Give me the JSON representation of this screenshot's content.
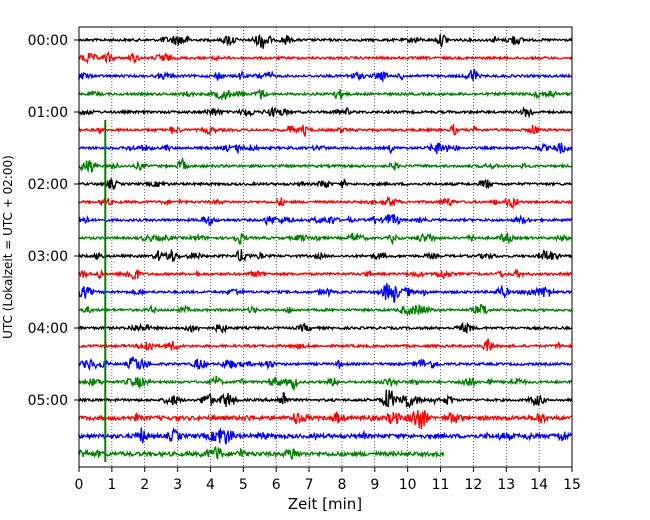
{
  "chart_data": {
    "type": "line",
    "subtype": "helicorder",
    "title": "",
    "xlabel": "Zeit  [min]",
    "ylabel": "UTC (Lokalzeit = UTC + 02:00)",
    "xlim": [
      0,
      15
    ],
    "x_ticks": [
      "0",
      "1",
      "2",
      "3",
      "4",
      "5",
      "6",
      "7",
      "8",
      "9",
      "10",
      "11",
      "12",
      "13",
      "14",
      "15"
    ],
    "y_tick_labels": [
      "00:00",
      "01:00",
      "02:00",
      "03:00",
      "04:00",
      "05:00"
    ],
    "row_interval_minutes": 15,
    "trace_colors": [
      "#000000",
      "#ff0000",
      "#0000ff",
      "#008000"
    ],
    "rows": 24,
    "last_row_end_minute": 11.1,
    "grid": "vertical dotted at every minute",
    "marker": {
      "minute": 0.8,
      "color": "#008000",
      "from_row": 5,
      "to_row": 23
    }
  }
}
